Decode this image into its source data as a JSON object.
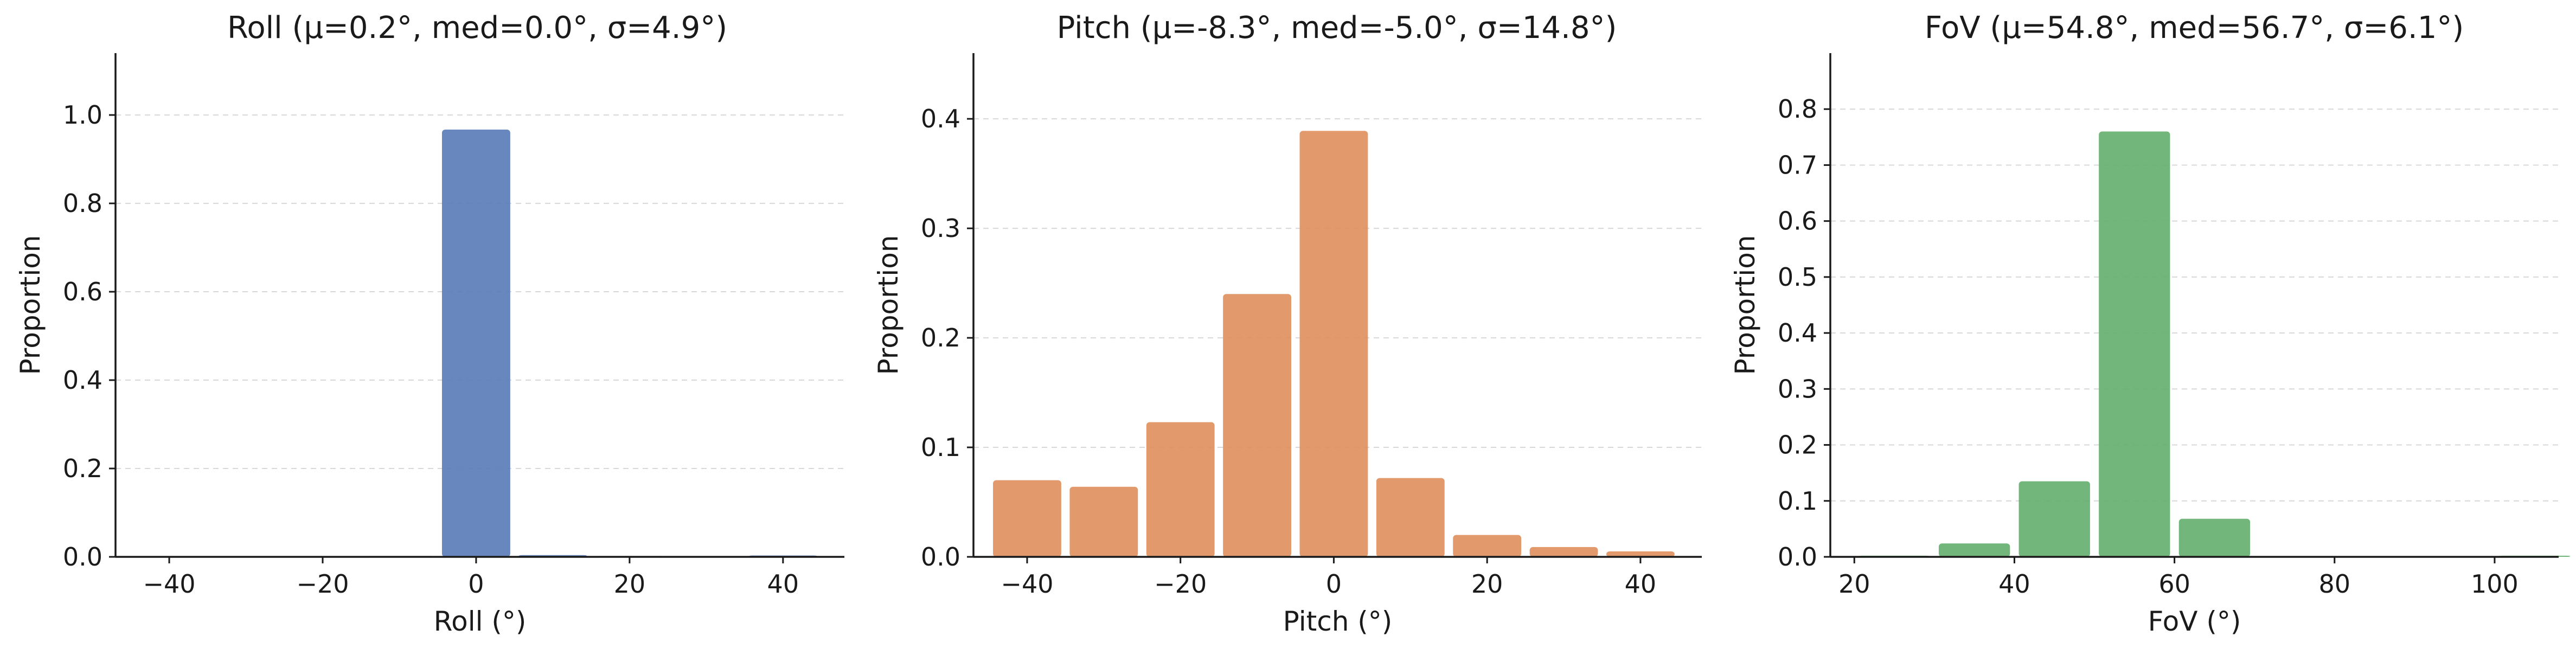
{
  "chart_data": [
    {
      "type": "bar",
      "title": "Roll  (μ=0.2°, med=0.0°, σ=4.9°)",
      "xlabel": "Roll (°)",
      "ylabel": "Proportion",
      "xlim": [
        -47,
        48
      ],
      "ylim": [
        0,
        1.14
      ],
      "xticks": [
        -40,
        -20,
        0,
        20,
        40
      ],
      "xtick_labels": [
        "−40",
        "−20",
        "0",
        "20",
        "40"
      ],
      "yticks": [
        0,
        0.2,
        0.4,
        0.6,
        0.8,
        1.0
      ],
      "ytick_labels": [
        "0.0",
        "0.2",
        "0.4",
        "0.6",
        "0.8",
        "1.0"
      ],
      "grid": "y",
      "color": "#5b7db8",
      "bin_width": 10,
      "bins": [
        {
          "start": -45,
          "end": -35,
          "value": 0.001
        },
        {
          "start": -35,
          "end": -25,
          "value": 0.001
        },
        {
          "start": -25,
          "end": -15,
          "value": 0.001
        },
        {
          "start": -15,
          "end": -5,
          "value": 0.002
        },
        {
          "start": -5,
          "end": 5,
          "value": 0.967
        },
        {
          "start": 5,
          "end": 15,
          "value": 0.004
        },
        {
          "start": 15,
          "end": 25,
          "value": 0.002
        },
        {
          "start": 25,
          "end": 35,
          "value": 0.001
        },
        {
          "start": 35,
          "end": 45,
          "value": 0.003
        }
      ]
    },
    {
      "type": "bar",
      "title": "Pitch  (μ=-8.3°, med=-5.0°, σ=14.8°)",
      "xlabel": "Pitch (°)",
      "ylabel": "Proportion",
      "xlim": [
        -47,
        48
      ],
      "ylim": [
        0,
        0.46
      ],
      "xticks": [
        -40,
        -20,
        0,
        20,
        40
      ],
      "xtick_labels": [
        "−40",
        "−20",
        "0",
        "20",
        "40"
      ],
      "yticks": [
        0,
        0.1,
        0.2,
        0.3,
        0.4
      ],
      "ytick_labels": [
        "0.0",
        "0.1",
        "0.2",
        "0.3",
        "0.4"
      ],
      "grid": "y",
      "color": "#e0905e",
      "bin_width": 10,
      "bins": [
        {
          "start": -45,
          "end": -35,
          "value": 0.07
        },
        {
          "start": -35,
          "end": -25,
          "value": 0.064
        },
        {
          "start": -25,
          "end": -15,
          "value": 0.123
        },
        {
          "start": -15,
          "end": -5,
          "value": 0.24
        },
        {
          "start": -5,
          "end": 5,
          "value": 0.389
        },
        {
          "start": 5,
          "end": 15,
          "value": 0.072
        },
        {
          "start": 15,
          "end": 25,
          "value": 0.02
        },
        {
          "start": 25,
          "end": 35,
          "value": 0.009
        },
        {
          "start": 35,
          "end": 45,
          "value": 0.005
        }
      ]
    },
    {
      "type": "bar",
      "title": "FoV  (μ=54.8°, med=56.7°, σ=6.1°)",
      "xlabel": "FoV (°)",
      "ylabel": "Proportion",
      "xlim": [
        17,
        108
      ],
      "ylim": [
        0,
        0.9
      ],
      "xticks": [
        20,
        40,
        60,
        80,
        100
      ],
      "xtick_labels": [
        "20",
        "40",
        "60",
        "80",
        "100"
      ],
      "yticks": [
        0,
        0.1,
        0.2,
        0.3,
        0.4,
        0.5,
        0.6,
        0.7,
        0.8
      ],
      "ytick_labels": [
        "0.0",
        "0.1",
        "0.2",
        "0.3",
        "0.4",
        "0.5",
        "0.6",
        "0.7",
        "0.8"
      ],
      "grid": "y",
      "color": "#66b070",
      "bin_width": 10,
      "bins": [
        {
          "start": 20,
          "end": 30,
          "value": 0.002
        },
        {
          "start": 30,
          "end": 40,
          "value": 0.024
        },
        {
          "start": 40,
          "end": 50,
          "value": 0.135
        },
        {
          "start": 50,
          "end": 60,
          "value": 0.76
        },
        {
          "start": 60,
          "end": 70,
          "value": 0.068
        },
        {
          "start": 70,
          "end": 80,
          "value": 0.001
        },
        {
          "start": 80,
          "end": 90,
          "value": 0.001
        },
        {
          "start": 90,
          "end": 100,
          "value": 0.001
        },
        {
          "start": 100,
          "end": 110,
          "value": 0.002
        }
      ]
    }
  ]
}
